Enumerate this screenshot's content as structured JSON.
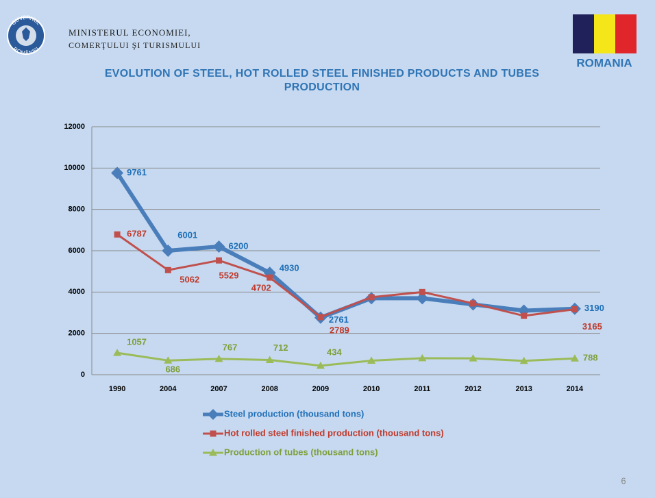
{
  "header": {
    "logo_text": [
      "GUVERNUL",
      "ROMÂNIEI"
    ],
    "ministry": [
      "MINISTERUL ECONOMIEI,",
      "COMERŢULUI ŞI TURISMULUI"
    ],
    "country": "ROMANIA"
  },
  "chart_data": {
    "type": "line",
    "title": "EVOLUTION OF STEEL, HOT ROLLED STEEL FINISHED PRODUCTS AND TUBES PRODUCTION",
    "categories": [
      "1990",
      "2004",
      "2007",
      "2008",
      "2009",
      "2010",
      "2011",
      "2012",
      "2013",
      "2014"
    ],
    "series": [
      {
        "name": "Steel production (thousand tons)",
        "color": "#4a7ebb",
        "label_color": "#1f6fb8",
        "marker": "diamond",
        "values": [
          9761,
          6001,
          6200,
          4930,
          2761,
          3700,
          3700,
          3400,
          3100,
          3190
        ],
        "value_labels": [
          "9761",
          "6001",
          "6200",
          "4930",
          "2761",
          null,
          null,
          null,
          null,
          "3190"
        ]
      },
      {
        "name": "Hot rolled steel finished production (thousand tons)",
        "color": "#c0504d",
        "label_color": "#c0392b",
        "marker": "square",
        "values": [
          6787,
          5062,
          5529,
          4702,
          2789,
          3750,
          4000,
          3450,
          2850,
          3165
        ],
        "value_labels": [
          "6787",
          "5062",
          "5529",
          "4702",
          "2789",
          null,
          null,
          null,
          null,
          "3165"
        ]
      },
      {
        "name": "Production of tubes (thousand tons)",
        "color": "#9bbb59",
        "label_color": "#7f9f3a",
        "marker": "triangle",
        "values": [
          1057,
          686,
          767,
          712,
          434,
          680,
          800,
          790,
          670,
          788
        ],
        "value_labels": [
          "1057",
          "686",
          "767",
          "712",
          "434",
          null,
          null,
          null,
          null,
          "788"
        ]
      }
    ],
    "ylim": [
      0,
      12000
    ],
    "yticks": [
      0,
      2000,
      4000,
      6000,
      8000,
      10000,
      12000
    ],
    "grid": true,
    "legend": "bottom"
  },
  "page_number": "6"
}
